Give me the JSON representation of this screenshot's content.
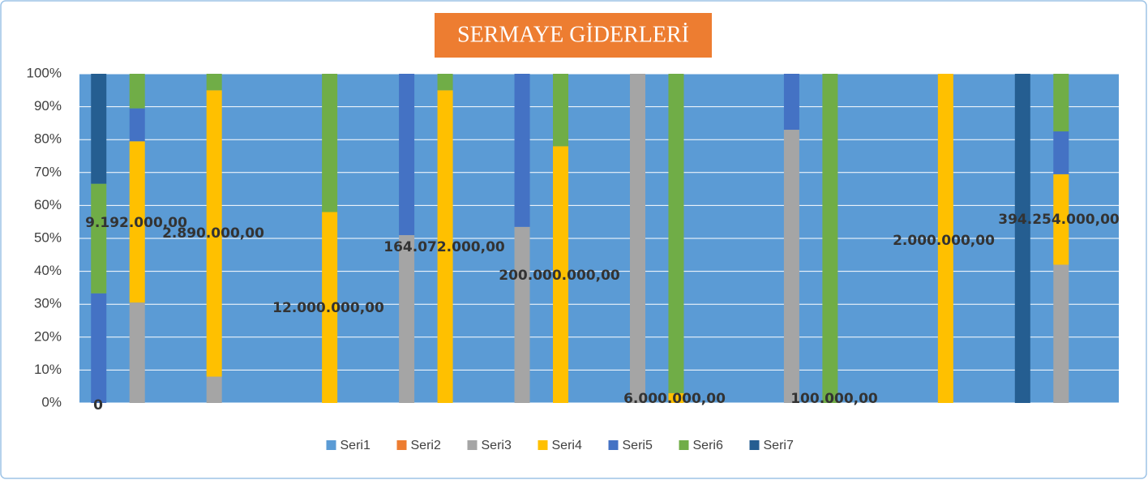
{
  "chart_data": {
    "type": "stacked_bar_100",
    "title": "SERMAYE GİDERLERİ",
    "categories": [
      null,
      null,
      null,
      null,
      null,
      null,
      null,
      null,
      null,
      null,
      null,
      null,
      null,
      null,
      null,
      null,
      null,
      null,
      null,
      null,
      null,
      null,
      null,
      null,
      null,
      null,
      null
    ],
    "series": [
      {
        "name": "Seri1",
        "color": "#5b9bd5",
        "values": [
          null,
          null,
          null,
          null,
          null,
          null,
          null,
          null,
          null,
          null,
          null,
          null,
          null,
          null,
          null,
          null,
          null,
          null,
          null,
          null,
          null,
          null,
          null,
          null,
          null,
          null,
          null
        ]
      },
      {
        "name": "Seri2",
        "color": "#ed7d31",
        "values": [
          null,
          null,
          null,
          null,
          null,
          null,
          null,
          null,
          null,
          null,
          null,
          null,
          null,
          null,
          null,
          null,
          null,
          null,
          null,
          null,
          null,
          null,
          null,
          null,
          null,
          null,
          null
        ]
      },
      {
        "name": "Seri3",
        "color": "#a5a5a5",
        "values": [
          null,
          30.5,
          null,
          8,
          null,
          null,
          null,
          null,
          51,
          null,
          null,
          53.5,
          null,
          null,
          100,
          null,
          null,
          null,
          83,
          null,
          null,
          null,
          null,
          null,
          null,
          42,
          null
        ]
      },
      {
        "name": "Seri4",
        "color": "#ffc000",
        "values": [
          null,
          49,
          null,
          87,
          null,
          null,
          58,
          null,
          null,
          95,
          null,
          null,
          78,
          null,
          null,
          3,
          null,
          null,
          null,
          null,
          null,
          null,
          100,
          null,
          null,
          27.5,
          null
        ]
      },
      {
        "name": "Seri5",
        "color": "#4472c4",
        "values": [
          33.3,
          10,
          null,
          null,
          null,
          null,
          null,
          null,
          49,
          null,
          null,
          46.5,
          null,
          null,
          null,
          null,
          null,
          null,
          17,
          null,
          null,
          null,
          null,
          null,
          null,
          13,
          null
        ]
      },
      {
        "name": "Seri6",
        "color": "#70ad47",
        "values": [
          33.3,
          10.5,
          null,
          5,
          null,
          null,
          42,
          null,
          null,
          5,
          null,
          null,
          22,
          null,
          null,
          97,
          null,
          null,
          null,
          100,
          null,
          null,
          null,
          null,
          null,
          17.5,
          null
        ]
      },
      {
        "name": "Seri7",
        "color": "#255e91",
        "values": [
          33.4,
          null,
          null,
          null,
          null,
          null,
          null,
          null,
          null,
          null,
          null,
          null,
          null,
          null,
          null,
          null,
          null,
          null,
          null,
          null,
          null,
          null,
          null,
          null,
          100,
          null,
          null
        ]
      }
    ],
    "ylim": [
      0,
      100
    ],
    "yticks": [
      {
        "value": 0,
        "label": "0%"
      },
      {
        "value": 10,
        "label": "10%"
      },
      {
        "value": 20,
        "label": "20%"
      },
      {
        "value": 30,
        "label": "30%"
      },
      {
        "value": 40,
        "label": "40%"
      },
      {
        "value": 50,
        "label": "50%"
      },
      {
        "value": 60,
        "label": "60%"
      },
      {
        "value": 70,
        "label": "70%"
      },
      {
        "value": 80,
        "label": "80%"
      },
      {
        "value": 90,
        "label": "90%"
      },
      {
        "value": 100,
        "label": "100%"
      }
    ],
    "grid": true,
    "legend": "bottom",
    "annotations": [
      "0",
      "9.192.000,00",
      "2.890.000,00",
      "12.000.000,00",
      "164.072.000,00",
      "200.000.000,00",
      "6.000.000,00",
      "100.000,00",
      "2.000.000,00",
      "394.254.000,00"
    ]
  }
}
